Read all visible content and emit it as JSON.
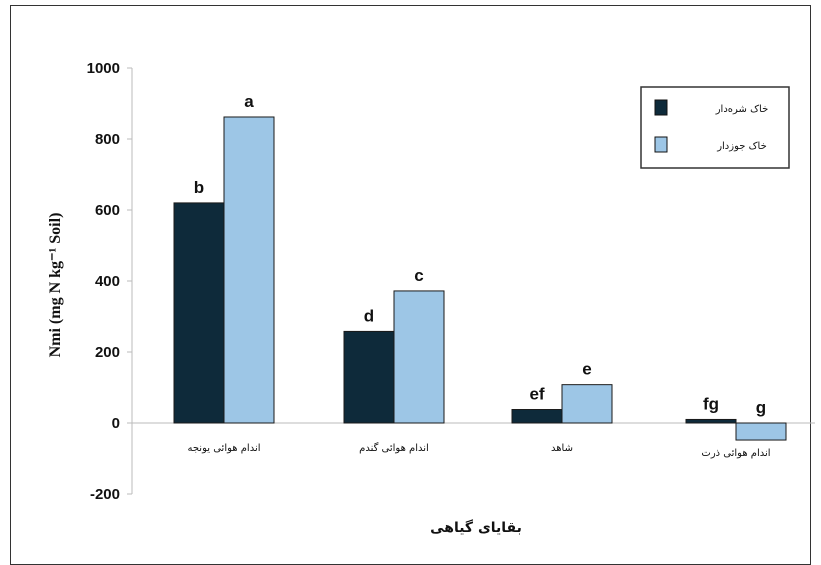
{
  "chart_data": {
    "type": "bar",
    "title": "",
    "xlabel": "بقایای گیاهی",
    "ylabel": "Nmi (mg N kg⁻¹ Soil)",
    "ylim": [
      -200,
      1000
    ],
    "yticks": [
      -200,
      0,
      200,
      400,
      600,
      800,
      1000
    ],
    "categories": [
      "اندام هوائی یونجه",
      "اندام هوائی گندم",
      "شاهد",
      "اندام هوائی ذرت"
    ],
    "series": [
      {
        "name": "خاک شره‌دار",
        "color": "#0e2a3a",
        "values": [
          620,
          258,
          38,
          10
        ],
        "labels": [
          "b",
          "d",
          "ef",
          "fg"
        ]
      },
      {
        "name": "خاک جوزدار",
        "color": "#9dc6e6",
        "values": [
          862,
          372,
          108,
          -48
        ],
        "labels": [
          "a",
          "c",
          "e",
          "g"
        ]
      }
    ],
    "legend_position": "top-right",
    "grid": false
  }
}
